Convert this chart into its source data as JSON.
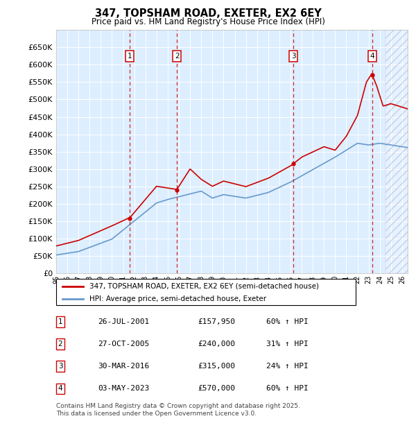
{
  "title": "347, TOPSHAM ROAD, EXETER, EX2 6EY",
  "subtitle": "Price paid vs. HM Land Registry's House Price Index (HPI)",
  "legend_property": "347, TOPSHAM ROAD, EXETER, EX2 6EY (semi-detached house)",
  "legend_hpi": "HPI: Average price, semi-detached house, Exeter",
  "footer1": "Contains HM Land Registry data © Crown copyright and database right 2025.",
  "footer2": "This data is licensed under the Open Government Licence v3.0.",
  "transactions": [
    {
      "label": "1",
      "date": "26-JUL-2001",
      "price": "£157,950",
      "change": "60% ↑ HPI",
      "year": 2001.57
    },
    {
      "label": "2",
      "date": "27-OCT-2005",
      "price": "£240,000",
      "change": "31% ↑ HPI",
      "year": 2005.82
    },
    {
      "label": "3",
      "date": "30-MAR-2016",
      "price": "£315,000",
      "change": "24% ↑ HPI",
      "year": 2016.25
    },
    {
      "label": "4",
      "date": "03-MAY-2023",
      "price": "£570,000",
      "change": "60% ↑ HPI",
      "year": 2023.34
    }
  ],
  "transaction_values": [
    157950,
    240000,
    315000,
    570000
  ],
  "ylim": [
    0,
    700000
  ],
  "yticks": [
    0,
    50000,
    100000,
    150000,
    200000,
    250000,
    300000,
    350000,
    400000,
    450000,
    500000,
    550000,
    600000,
    650000
  ],
  "xlim_start": 1995.0,
  "xlim_end": 2026.5,
  "property_color": "#cc0000",
  "hpi_color": "#6699cc",
  "background_color": "#ddeeff",
  "grid_color": "#ffffff",
  "hatch_area_start": 2024.5
}
